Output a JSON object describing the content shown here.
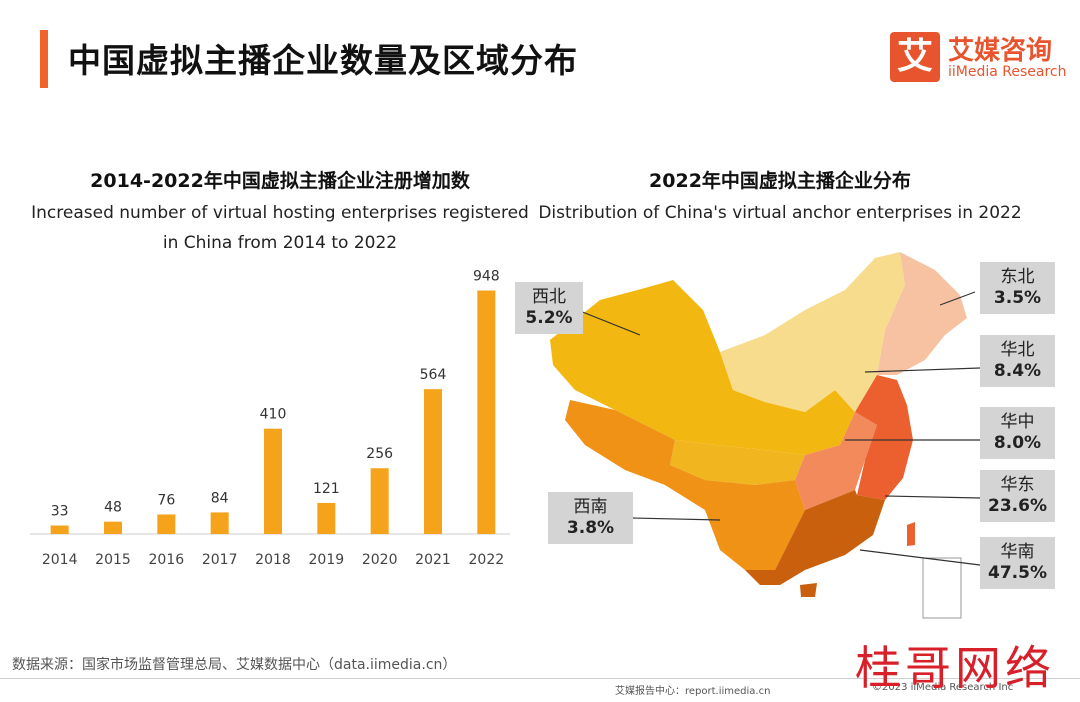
{
  "header": {
    "title": "中国虚拟主播企业数量及区域分布",
    "brand_icon": "艾",
    "brand_cn": "艾媒咨询",
    "brand_en": "iiMedia Research"
  },
  "left_chart": {
    "title_cn": "2014-2022年中国虚拟主播企业注册增加数",
    "title_en_line1": "Increased number of virtual hosting enterprises registered",
    "title_en_line2": "in China from 2014 to 2022"
  },
  "right_chart": {
    "title_cn": "2022年中国虚拟主播企业分布",
    "title_en": "Distribution of China's virtual anchor enterprises in 2022"
  },
  "chart_data": [
    {
      "type": "bar",
      "categories": [
        "2014",
        "2015",
        "2016",
        "2017",
        "2018",
        "2019",
        "2020",
        "2021",
        "2022"
      ],
      "values": [
        33,
        48,
        76,
        84,
        410,
        121,
        256,
        564,
        948
      ],
      "title": "2014-2022年中国虚拟主播企业注册增加数",
      "ylim": [
        0,
        950
      ],
      "grid": false,
      "bar_color": "#f5a31a"
    },
    {
      "type": "pie",
      "title": "2022年中国虚拟主播企业分布",
      "categories": [
        "西北",
        "东北",
        "华北",
        "华中",
        "华东",
        "西南",
        "华南"
      ],
      "values": [
        5.2,
        3.5,
        8.4,
        8.0,
        23.6,
        3.8,
        47.5
      ],
      "labels": [
        "5.2%",
        "3.5%",
        "8.4%",
        "8.0%",
        "23.6%",
        "3.8%",
        "47.5%"
      ]
    }
  ],
  "footer": {
    "source": "数据来源：国家市场监督管理总局、艾媒数据中心（data.iimedia.cn）",
    "report": "艾媒报告中心：report.iimedia.cn",
    "copyright": "©2023  iiMedia Research  Inc",
    "watermark": "桂哥网络"
  }
}
